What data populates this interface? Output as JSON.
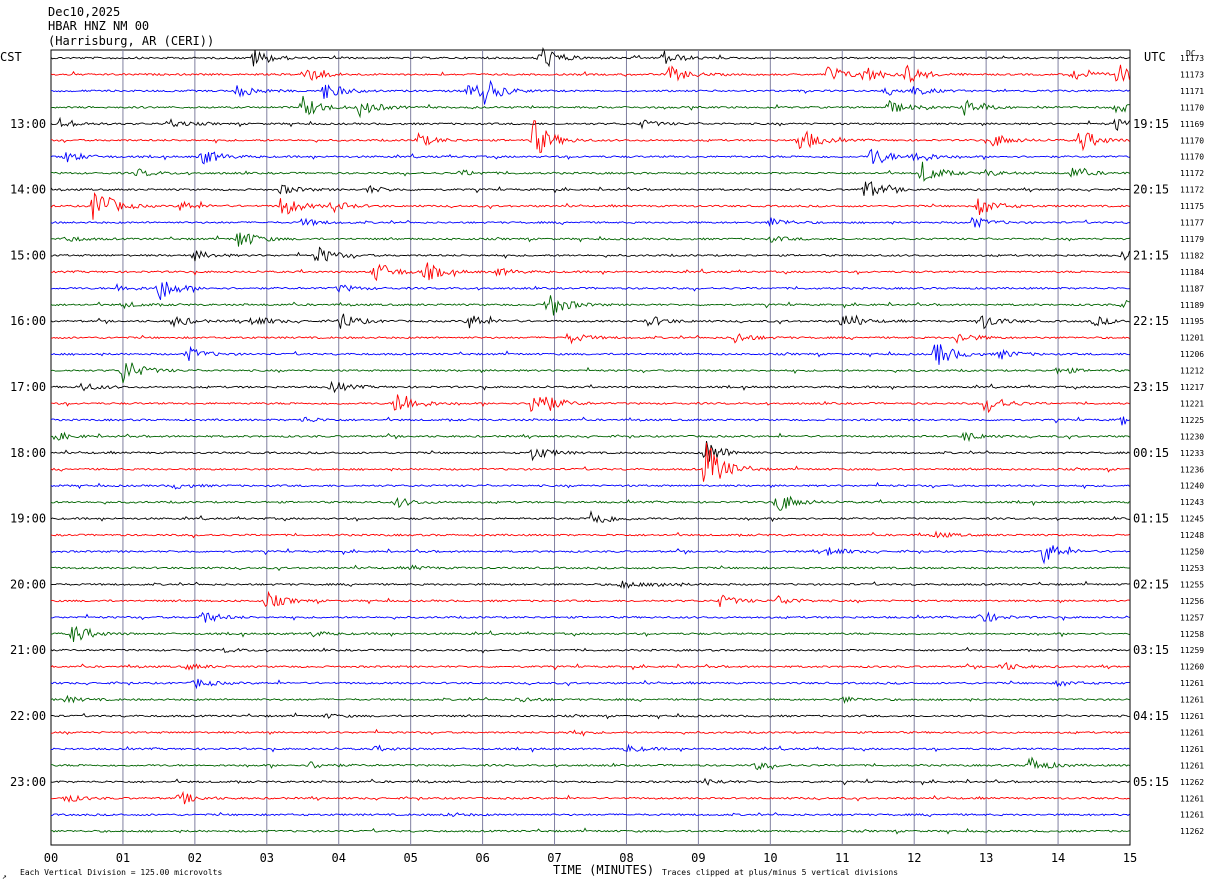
{
  "header": {
    "date": "Dec10,2025",
    "station": "HBAR HNZ NM 00",
    "location": "(Harrisburg, AR (CERI))"
  },
  "labels": {
    "left_zone": "CST",
    "right_zone": "UTC",
    "dc": "DC",
    "xlabel": "TIME (MINUTES)",
    "scale_note": "Each Vertical Division =  125.00 microvolts",
    "clip_note": "Traces clipped at plus/minus 5 vertical divisions",
    "corner_mark": "↗"
  },
  "colors": {
    "cycle": [
      "#000000",
      "#ff0000",
      "#0000ff",
      "#006400"
    ],
    "grid": "#8080a0"
  },
  "chart_data": {
    "type": "line",
    "xlim": [
      0,
      15
    ],
    "x_ticks": [
      "00",
      "01",
      "02",
      "03",
      "04",
      "05",
      "06",
      "07",
      "08",
      "09",
      "10",
      "11",
      "12",
      "13",
      "14",
      "15"
    ],
    "trace_minutes": 15,
    "left_time_labels": [
      "13:00",
      "14:00",
      "15:00",
      "16:00",
      "17:00",
      "18:00",
      "19:00",
      "20:00",
      "21:00",
      "22:00",
      "23:00"
    ],
    "right_time_labels": [
      "19:15",
      "20:15",
      "21:15",
      "22:15",
      "23:15",
      "00:15",
      "01:15",
      "02:15",
      "03:15",
      "04:15",
      "05:15"
    ],
    "dc_offsets": [
      "11173",
      "11173",
      "11171",
      "11170",
      "11169",
      "11170",
      "11170",
      "11172",
      "11172",
      "11175",
      "11177",
      "11179",
      "11182",
      "11184",
      "11187",
      "11189",
      "11195",
      "11201",
      "11206",
      "11212",
      "11217",
      "11221",
      "11225",
      "11230",
      "11233",
      "11236",
      "11240",
      "11243",
      "11245",
      "11248",
      "11250",
      "11253",
      "11255",
      "11256",
      "11257",
      "11258",
      "11259",
      "11260",
      "11261",
      "11261",
      "11261",
      "11261",
      "11261",
      "11261",
      "11262",
      "11261",
      "11261",
      "11262"
    ],
    "events": [
      [
        {
          "t": 2.8,
          "a": 10
        },
        {
          "t": 6.8,
          "a": 14
        },
        {
          "t": 8.5,
          "a": 8
        }
      ],
      [
        {
          "t": 3.5,
          "a": 10
        },
        {
          "t": 8.6,
          "a": 9
        },
        {
          "t": 10.8,
          "a": 10
        },
        {
          "t": 11.3,
          "a": 9
        },
        {
          "t": 11.9,
          "a": 10
        },
        {
          "t": 14.2,
          "a": 7
        },
        {
          "t": 14.8,
          "a": 12
        }
      ],
      [
        {
          "t": 2.6,
          "a": 7
        },
        {
          "t": 3.8,
          "a": 10
        },
        {
          "t": 5.8,
          "a": 9
        },
        {
          "t": 6.0,
          "a": 12
        },
        {
          "t": 11.6,
          "a": 5
        },
        {
          "t": 12.0,
          "a": 4
        }
      ],
      [
        {
          "t": 3.5,
          "a": 12
        },
        {
          "t": 4.3,
          "a": 9
        },
        {
          "t": 11.6,
          "a": 9
        },
        {
          "t": 12.7,
          "a": 8
        },
        {
          "t": 14.8,
          "a": 6
        }
      ],
      [
        {
          "t": 0.1,
          "a": 6
        },
        {
          "t": 1.6,
          "a": 5
        },
        {
          "t": 8.2,
          "a": 4
        },
        {
          "t": 14.8,
          "a": 7
        }
      ],
      [
        {
          "t": 5.1,
          "a": 7
        },
        {
          "t": 6.7,
          "a": 22
        },
        {
          "t": 10.4,
          "a": 14
        },
        {
          "t": 13.1,
          "a": 7
        },
        {
          "t": 14.3,
          "a": 12
        }
      ],
      [
        {
          "t": 0.2,
          "a": 6
        },
        {
          "t": 2.1,
          "a": 9
        },
        {
          "t": 11.4,
          "a": 11
        },
        {
          "t": 12.0,
          "a": 7
        }
      ],
      [
        {
          "t": 1.2,
          "a": 4
        },
        {
          "t": 5.7,
          "a": 3
        },
        {
          "t": 12.1,
          "a": 12
        },
        {
          "t": 13.0,
          "a": 3
        },
        {
          "t": 14.2,
          "a": 6
        }
      ],
      [
        {
          "t": 3.2,
          "a": 5
        },
        {
          "t": 4.4,
          "a": 4
        },
        {
          "t": 11.3,
          "a": 12
        }
      ],
      [
        {
          "t": 0.6,
          "a": 22
        },
        {
          "t": 1.8,
          "a": 5
        },
        {
          "t": 3.2,
          "a": 12
        },
        {
          "t": 3.9,
          "a": 6
        },
        {
          "t": 12.9,
          "a": 10
        }
      ],
      [
        {
          "t": 3.5,
          "a": 4
        },
        {
          "t": 10.0,
          "a": 5
        },
        {
          "t": 12.8,
          "a": 6
        }
      ],
      [
        {
          "t": 0.2,
          "a": 3
        },
        {
          "t": 2.6,
          "a": 11
        },
        {
          "t": 10.0,
          "a": 3
        }
      ],
      [
        {
          "t": 2.0,
          "a": 5
        },
        {
          "t": 3.7,
          "a": 10
        },
        {
          "t": 14.9,
          "a": 5
        }
      ],
      [
        {
          "t": 4.5,
          "a": 12
        },
        {
          "t": 5.2,
          "a": 10
        },
        {
          "t": 6.2,
          "a": 4
        }
      ],
      [
        {
          "t": 0.9,
          "a": 4
        },
        {
          "t": 1.5,
          "a": 13
        },
        {
          "t": 4.0,
          "a": 4
        }
      ],
      [
        {
          "t": 1.0,
          "a": 3
        },
        {
          "t": 6.9,
          "a": 16
        },
        {
          "t": 14.9,
          "a": 5
        }
      ],
      [
        {
          "t": 1.7,
          "a": 6
        },
        {
          "t": 2.8,
          "a": 6
        },
        {
          "t": 4.0,
          "a": 10
        },
        {
          "t": 5.8,
          "a": 8
        },
        {
          "t": 8.3,
          "a": 6
        },
        {
          "t": 11.0,
          "a": 9
        },
        {
          "t": 12.9,
          "a": 10
        },
        {
          "t": 14.5,
          "a": 5
        }
      ],
      [
        {
          "t": 7.2,
          "a": 6
        },
        {
          "t": 9.5,
          "a": 6
        },
        {
          "t": 12.6,
          "a": 6
        }
      ],
      [
        {
          "t": 1.9,
          "a": 7
        },
        {
          "t": 12.3,
          "a": 14
        },
        {
          "t": 13.2,
          "a": 5
        }
      ],
      [
        {
          "t": 1.0,
          "a": 14
        },
        {
          "t": 14.0,
          "a": 4
        }
      ],
      [
        {
          "t": 0.4,
          "a": 5
        },
        {
          "t": 3.9,
          "a": 6
        }
      ],
      [
        {
          "t": 4.8,
          "a": 16
        },
        {
          "t": 6.7,
          "a": 22
        },
        {
          "t": 13.0,
          "a": 11
        }
      ],
      [
        {
          "t": 3.5,
          "a": 3
        },
        {
          "t": 14.9,
          "a": 7
        }
      ],
      [
        {
          "t": 0.1,
          "a": 3
        },
        {
          "t": 12.7,
          "a": 5
        }
      ],
      [
        {
          "t": 6.7,
          "a": 8
        },
        {
          "t": 9.1,
          "a": 14
        }
      ],
      [
        {
          "t": 9.1,
          "a": 30
        }
      ],
      [
        {
          "t": 1.7,
          "a": 3
        }
      ],
      [
        {
          "t": 4.8,
          "a": 5
        },
        {
          "t": 10.1,
          "a": 12
        }
      ],
      [
        {
          "t": 7.5,
          "a": 10
        }
      ],
      [
        {
          "t": 12.3,
          "a": 3
        }
      ],
      [
        {
          "t": 10.8,
          "a": 5
        },
        {
          "t": 13.8,
          "a": 12
        }
      ],
      [
        {
          "t": 5.0,
          "a": 2
        }
      ],
      [
        {
          "t": 7.9,
          "a": 5
        },
        {
          "t": 8.4,
          "a": 3
        }
      ],
      [
        {
          "t": 3.0,
          "a": 9
        },
        {
          "t": 9.3,
          "a": 6
        },
        {
          "t": 10.1,
          "a": 5
        }
      ],
      [
        {
          "t": 2.1,
          "a": 7
        },
        {
          "t": 12.9,
          "a": 7
        }
      ],
      [
        {
          "t": 0.3,
          "a": 10
        },
        {
          "t": 3.6,
          "a": 3
        }
      ],
      [
        {
          "t": 2.4,
          "a": 2
        }
      ],
      [
        {
          "t": 13.2,
          "a": 5
        },
        {
          "t": 1.9,
          "a": 3
        }
      ],
      [
        {
          "t": 2.0,
          "a": 5
        },
        {
          "t": 14.0,
          "a": 3
        }
      ],
      [
        {
          "t": 0.2,
          "a": 3
        },
        {
          "t": 6.5,
          "a": 3
        },
        {
          "t": 11.0,
          "a": 3
        }
      ],
      [
        {
          "t": 3.8,
          "a": 2
        }
      ],
      [
        {
          "t": 7.2,
          "a": 2
        }
      ],
      [
        {
          "t": 8.0,
          "a": 4
        },
        {
          "t": 4.5,
          "a": 2
        }
      ],
      [
        {
          "t": 13.6,
          "a": 9
        },
        {
          "t": 9.8,
          "a": 4
        },
        {
          "t": 3.6,
          "a": 4
        }
      ],
      [
        {
          "t": 9.1,
          "a": 3
        }
      ],
      [
        {
          "t": 1.8,
          "a": 6
        },
        {
          "t": 0.2,
          "a": 4
        }
      ],
      [
        {
          "t": 5.5,
          "a": 2
        }
      ]
    ]
  }
}
